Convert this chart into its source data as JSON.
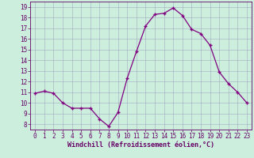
{
  "x": [
    0,
    1,
    2,
    3,
    4,
    5,
    6,
    7,
    8,
    9,
    10,
    11,
    12,
    13,
    14,
    15,
    16,
    17,
    18,
    19,
    20,
    21,
    22,
    23
  ],
  "y": [
    10.9,
    11.1,
    10.9,
    10.0,
    9.5,
    9.5,
    9.5,
    8.5,
    7.8,
    9.1,
    12.3,
    14.8,
    17.2,
    18.3,
    18.4,
    18.9,
    18.2,
    16.9,
    16.5,
    15.4,
    12.9,
    11.8,
    11.0,
    10.0
  ],
  "line_color": "#800080",
  "marker": "+",
  "marker_size": 3.5,
  "marker_linewidth": 1.0,
  "xlabel": "Windchill (Refroidissement éolien,°C)",
  "xlim": [
    -0.5,
    23.5
  ],
  "ylim": [
    7.5,
    19.5
  ],
  "yticks": [
    8,
    9,
    10,
    11,
    12,
    13,
    14,
    15,
    16,
    17,
    18,
    19
  ],
  "xticks": [
    0,
    1,
    2,
    3,
    4,
    5,
    6,
    7,
    8,
    9,
    10,
    11,
    12,
    13,
    14,
    15,
    16,
    17,
    18,
    19,
    20,
    21,
    22,
    23
  ],
  "background_color": "#cceedd",
  "grid_color": "#9999bb",
  "line_color_hex": "#800080",
  "tick_color": "#660066",
  "font_size": 5.5,
  "xlabel_fontsize": 6.0
}
